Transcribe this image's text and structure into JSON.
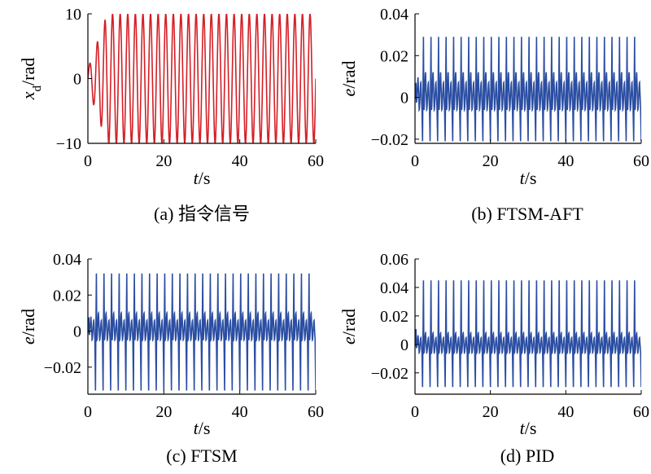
{
  "chart_data": [
    {
      "type": "line",
      "caption": "(a) 指令信号",
      "ylabel_var": "x",
      "ylabel_sub": "d",
      "ylabel_unit": "/rad",
      "xlabel_var": "t",
      "xlabel_unit": "/s",
      "xlim": [
        0,
        60
      ],
      "ylim": [
        -10,
        10
      ],
      "xticks": [
        {
          "v": 0,
          "label": "0"
        },
        {
          "v": 20,
          "label": "20"
        },
        {
          "v": 40,
          "label": "40"
        },
        {
          "v": 60,
          "label": "60"
        }
      ],
      "yticks": [
        {
          "v": 10,
          "label": "10"
        },
        {
          "v": 0,
          "label": "0"
        },
        {
          "v": -10,
          "label": "−10"
        }
      ],
      "color": "#d41f26",
      "series": [
        {
          "signal": "chirp",
          "amplitude_max": 10,
          "amplitude_growth_s": 6,
          "period_s": 2.0,
          "cycles": 30
        }
      ]
    },
    {
      "type": "line",
      "caption": "(b) FTSM-AFT",
      "ylabel_var": "e",
      "ylabel_unit": "/rad",
      "xlabel_var": "t",
      "xlabel_unit": "/s",
      "xlim": [
        0,
        60
      ],
      "ylim": [
        -0.022,
        0.04
      ],
      "xticks": [
        {
          "v": 0,
          "label": "0"
        },
        {
          "v": 20,
          "label": "20"
        },
        {
          "v": 40,
          "label": "40"
        },
        {
          "v": 60,
          "label": "60"
        }
      ],
      "yticks": [
        {
          "v": 0.04,
          "label": "0.04"
        },
        {
          "v": 0.02,
          "label": "0.02"
        },
        {
          "v": 0,
          "label": "0"
        },
        {
          "v": -0.02,
          "label": "−0.02"
        }
      ],
      "color": "#2b4ea2",
      "series": [
        {
          "signal": "error",
          "period_s": 2.0,
          "peak_max": 0.029,
          "peak_min": -0.021,
          "inner_max": 0.012,
          "inner_min": -0.006
        }
      ]
    },
    {
      "type": "line",
      "caption": "(c) FTSM",
      "ylabel_var": "e",
      "ylabel_unit": "/rad",
      "xlabel_var": "t",
      "xlabel_unit": "/s",
      "xlim": [
        0,
        60
      ],
      "ylim": [
        -0.035,
        0.04
      ],
      "xticks": [
        {
          "v": 0,
          "label": "0"
        },
        {
          "v": 20,
          "label": "20"
        },
        {
          "v": 40,
          "label": "40"
        },
        {
          "v": 60,
          "label": "60"
        }
      ],
      "yticks": [
        {
          "v": 0.04,
          "label": "0.04"
        },
        {
          "v": 0.02,
          "label": "0.02"
        },
        {
          "v": 0,
          "label": "0"
        },
        {
          "v": -0.02,
          "label": "−0.02"
        }
      ],
      "color": "#2b4ea2",
      "series": [
        {
          "signal": "error",
          "period_s": 2.0,
          "peak_max": 0.032,
          "peak_min": -0.033,
          "inner_max": 0.01,
          "inner_min": -0.005
        }
      ]
    },
    {
      "type": "line",
      "caption": "(d) PID",
      "ylabel_var": "e",
      "ylabel_unit": "/rad",
      "xlabel_var": "t",
      "xlabel_unit": "/s",
      "xlim": [
        0,
        60
      ],
      "ylim": [
        -0.035,
        0.06
      ],
      "xticks": [
        {
          "v": 0,
          "label": "0"
        },
        {
          "v": 20,
          "label": "20"
        },
        {
          "v": 40,
          "label": "40"
        },
        {
          "v": 60,
          "label": "60"
        }
      ],
      "yticks": [
        {
          "v": 0.06,
          "label": "0.06"
        },
        {
          "v": 0.04,
          "label": "0.04"
        },
        {
          "v": 0.02,
          "label": "0.02"
        },
        {
          "v": 0,
          "label": "0"
        },
        {
          "v": -0.02,
          "label": "−0.02"
        }
      ],
      "color": "#2b4ea2",
      "series": [
        {
          "signal": "error",
          "period_s": 2.0,
          "peak_max": 0.045,
          "peak_min": -0.03,
          "inner_max": 0.008,
          "inner_min": -0.006
        }
      ]
    }
  ]
}
